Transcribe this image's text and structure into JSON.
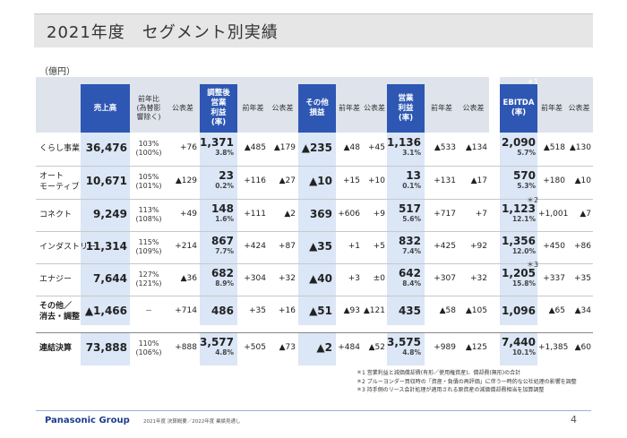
{
  "title": "2021年度　セグメント別実績",
  "unit": "（億円）",
  "headers": {
    "sales": "売上高",
    "yoy_line1": "前年比",
    "yoy_line2": "(為替影",
    "yoy_line3": "響除く)",
    "plan_diff": "公表差",
    "adj_op_line1": "調整後",
    "adj_op_line2": "営業",
    "adj_op_line3": "利益",
    "adj_op_line4": "(率)",
    "prev_diff": "前年差",
    "other_line1": "その他",
    "other_line2": "損益",
    "op_line1": "営業",
    "op_line2": "利益",
    "op_line3": "(率)",
    "ebitda_line1": "EBITDA",
    "ebitda_line2": "(率)",
    "ebitda_note": "＊1"
  },
  "rows": [
    {
      "label_1": "くらし事業",
      "label_2": "",
      "sales": "36,476",
      "yoy": "103%",
      "yoy_adj": "(100%)",
      "plan_diff": "+76",
      "adj_op": "1,371",
      "adj_op_rate": "3.8%",
      "adj_prev": "▲485",
      "adj_plan": "▲179",
      "other": "▲235",
      "other_prev": "▲48",
      "other_plan": "+45",
      "op": "1,136",
      "op_rate": "3.1%",
      "op_prev": "▲533",
      "op_plan": "▲134",
      "ebitda": "2,090",
      "ebitda_rate": "5.7%",
      "eb_prev": "▲518",
      "eb_plan": "▲130",
      "eb_note": ""
    },
    {
      "label_1": "オート",
      "label_2": "モーティブ",
      "sales": "10,671",
      "yoy": "105%",
      "yoy_adj": "(101%)",
      "plan_diff": "▲129",
      "adj_op": "23",
      "adj_op_rate": "0.2%",
      "adj_prev": "+116",
      "adj_plan": "▲27",
      "other": "▲10",
      "other_prev": "+15",
      "other_plan": "+10",
      "op": "13",
      "op_rate": "0.1%",
      "op_prev": "+131",
      "op_plan": "▲17",
      "ebitda": "570",
      "ebitda_rate": "5.3%",
      "eb_prev": "+180",
      "eb_plan": "▲10",
      "eb_note": ""
    },
    {
      "label_1": "コネクト",
      "label_2": "",
      "sales": "9,249",
      "yoy": "113%",
      "yoy_adj": "(108%)",
      "plan_diff": "+49",
      "adj_op": "148",
      "adj_op_rate": "1.6%",
      "adj_prev": "+111",
      "adj_plan": "▲2",
      "other": "369",
      "other_prev": "+606",
      "other_plan": "+9",
      "op": "517",
      "op_rate": "5.6%",
      "op_prev": "+717",
      "op_plan": "+7",
      "ebitda": "1,123",
      "ebitda_rate": "12.1%",
      "eb_prev": "+1,001",
      "eb_plan": "▲7",
      "eb_note": "＊2"
    },
    {
      "label_1": "インダストリー",
      "label_2": "",
      "sales": "11,314",
      "yoy": "115%",
      "yoy_adj": "(109%)",
      "plan_diff": "+214",
      "adj_op": "867",
      "adj_op_rate": "7.7%",
      "adj_prev": "+424",
      "adj_plan": "+87",
      "other": "▲35",
      "other_prev": "+1",
      "other_plan": "+5",
      "op": "832",
      "op_rate": "7.4%",
      "op_prev": "+425",
      "op_plan": "+92",
      "ebitda": "1,356",
      "ebitda_rate": "12.0%",
      "eb_prev": "+450",
      "eb_plan": "+86",
      "eb_note": ""
    },
    {
      "label_1": "エナジー",
      "label_2": "",
      "sales": "7,644",
      "yoy": "127%",
      "yoy_adj": "(121%)",
      "plan_diff": "▲36",
      "adj_op": "682",
      "adj_op_rate": "8.9%",
      "adj_prev": "+304",
      "adj_plan": "+32",
      "other": "▲40",
      "other_prev": "+3",
      "other_plan": "±0",
      "op": "642",
      "op_rate": "8.4%",
      "op_prev": "+307",
      "op_plan": "+32",
      "ebitda": "1,205",
      "ebitda_rate": "15.8%",
      "eb_prev": "+337",
      "eb_plan": "+35",
      "eb_note": "＊3"
    },
    {
      "label_1": "その他／",
      "label_2": "消去・調整",
      "sales": "▲1,466",
      "yoy": "－",
      "yoy_adj": "",
      "plan_diff": "+714",
      "adj_op": "486",
      "adj_op_rate": "",
      "adj_prev": "+35",
      "adj_plan": "+16",
      "other": "▲51",
      "other_prev": "▲93",
      "other_plan": "▲121",
      "op": "435",
      "op_rate": "",
      "op_prev": "▲58",
      "op_plan": "▲105",
      "ebitda": "1,096",
      "ebitda_rate": "",
      "eb_prev": "▲65",
      "eb_plan": "▲34",
      "eb_note": ""
    },
    {
      "label_1": "連結決算",
      "label_2": "",
      "sales": "73,888",
      "yoy": "110%",
      "yoy_adj": "(106%)",
      "plan_diff": "+888",
      "adj_op": "3,577",
      "adj_op_rate": "4.8%",
      "adj_prev": "+505",
      "adj_plan": "▲73",
      "other": "▲2",
      "other_prev": "+484",
      "other_plan": "▲52",
      "op": "3,575",
      "op_rate": "4.8%",
      "op_prev": "+989",
      "op_plan": "▲125",
      "ebitda": "7,440",
      "ebitda_rate": "10.1%",
      "eb_prev": "+1,385",
      "eb_plan": "▲60",
      "eb_note": ""
    }
  ],
  "notes": [
    "＊1  営業利益と減価償却費(有形／使用権資産)、償却費(無形)の合計",
    "＊2  ブルーヨンダー買収時の「資産・負債の再評価」に伴う一時的な公社処理の影響を調整",
    "＊3  持手側のリース会計処理が適用される原資産の減価償却費相当を加算調整"
  ],
  "footer": {
    "logo": "Panasonic Group",
    "source": "2021年度 決算概要／2022年度 業績見通し",
    "page": "4"
  }
}
